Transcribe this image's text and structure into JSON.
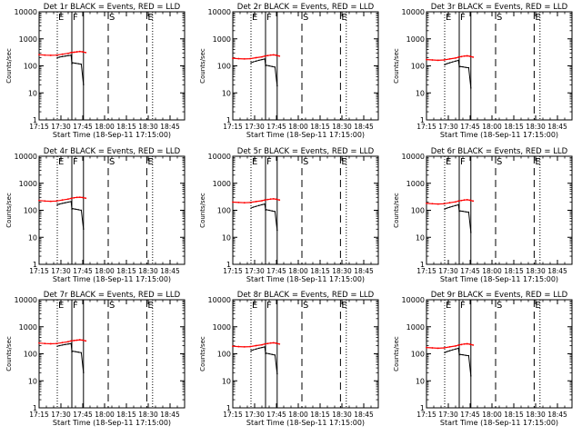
{
  "figure": {
    "start_time_label": "Start Time (18-Sep-11 17:15:00)",
    "ylabel": "Counts/sec",
    "x_tick_labels": [
      "17:15",
      "17:30",
      "17:45",
      "18:00",
      "18:15",
      "18:30",
      "18:45"
    ],
    "x_ticks_minutes": [
      0,
      15,
      30,
      45,
      60,
      75,
      90
    ],
    "xlim_minutes": [
      0,
      100
    ],
    "ylim": [
      1,
      10000
    ],
    "yscale": "log",
    "y_tick_values": [
      1,
      10,
      100,
      1000,
      10000
    ],
    "y_tick_labels": [
      "1",
      "10",
      "100",
      "1000",
      "10000"
    ],
    "series_colors": {
      "events": "#000000",
      "lld": "#ff0000"
    },
    "marker_lines": [
      {
        "letter": "E",
        "minute": 12.5,
        "style": "dotted"
      },
      {
        "letter": "F",
        "minute": 22.5,
        "style": "solid"
      },
      {
        "letter": "",
        "minute": 30.5,
        "style": "solid"
      },
      {
        "letter": "S",
        "minute": 47.5,
        "style": "dashed"
      },
      {
        "letter": "E",
        "minute": 74,
        "style": "dashed"
      },
      {
        "letter": "",
        "minute": 78,
        "style": "dotted"
      }
    ]
  },
  "chart_data": [
    {
      "type": "line",
      "title": "Det 1r BLACK = Events, RED = LLD",
      "xlabel": "Start Time (18-Sep-11 17:15:00)",
      "ylabel": "Counts/sec",
      "ylim": [
        1,
        10000
      ],
      "yscale": "log",
      "events": {
        "x": [
          12.5,
          14,
          16,
          18,
          20,
          22,
          22.5,
          23,
          25,
          27,
          29,
          30.5
        ],
        "y": [
          200,
          210,
          220,
          230,
          240,
          250,
          120,
          130,
          125,
          120,
          115,
          20
        ]
      },
      "lld": {
        "x": [
          0,
          4,
          8,
          12,
          16,
          20,
          22,
          24,
          26,
          28,
          30,
          32
        ],
        "y": [
          260,
          250,
          245,
          250,
          270,
          290,
          310,
          320,
          330,
          340,
          330,
          310
        ]
      }
    },
    {
      "type": "line",
      "title": "Det 2r BLACK = Events, RED = LLD",
      "xlabel": "Start Time (18-Sep-11 17:15:00)",
      "ylabel": "Counts/sec",
      "ylim": [
        1,
        10000
      ],
      "yscale": "log",
      "events": {
        "x": [
          12.5,
          14,
          16,
          18,
          20,
          22,
          22.5,
          23,
          25,
          27,
          29,
          30.5
        ],
        "y": [
          130,
          140,
          150,
          160,
          170,
          180,
          100,
          105,
          100,
          95,
          90,
          18
        ]
      },
      "lld": {
        "x": [
          0,
          4,
          8,
          12,
          16,
          20,
          22,
          24,
          26,
          28,
          30,
          32
        ],
        "y": [
          190,
          185,
          180,
          185,
          200,
          215,
          230,
          240,
          250,
          255,
          245,
          230
        ]
      }
    },
    {
      "type": "line",
      "title": "Det 3r BLACK = Events, RED = LLD",
      "xlabel": "Start Time (18-Sep-11 17:15:00)",
      "ylabel": "Counts/sec",
      "ylim": [
        1,
        10000
      ],
      "yscale": "log",
      "events": {
        "x": [
          12.5,
          14,
          16,
          18,
          20,
          22,
          22.5,
          23,
          25,
          27,
          29,
          30.5
        ],
        "y": [
          110,
          120,
          130,
          140,
          150,
          160,
          90,
          95,
          92,
          88,
          85,
          15
        ]
      },
      "lld": {
        "x": [
          0,
          4,
          8,
          12,
          16,
          20,
          22,
          24,
          26,
          28,
          30,
          32
        ],
        "y": [
          170,
          165,
          160,
          165,
          180,
          195,
          210,
          220,
          230,
          235,
          225,
          210
        ]
      }
    },
    {
      "type": "line",
      "title": "Det 4r BLACK = Events, RED = LLD",
      "xlabel": "Start Time (18-Sep-11 17:15:00)",
      "ylabel": "Counts/sec",
      "ylim": [
        1,
        10000
      ],
      "yscale": "log",
      "events": {
        "x": [
          12.5,
          14,
          16,
          18,
          20,
          22,
          22.5,
          23,
          25,
          27,
          29,
          30.5
        ],
        "y": [
          160,
          170,
          180,
          190,
          200,
          210,
          110,
          115,
          110,
          105,
          100,
          20
        ]
      },
      "lld": {
        "x": [
          0,
          4,
          8,
          12,
          16,
          20,
          22,
          24,
          26,
          28,
          30,
          32
        ],
        "y": [
          230,
          220,
          215,
          220,
          240,
          260,
          275,
          290,
          300,
          305,
          295,
          280
        ]
      }
    },
    {
      "type": "line",
      "title": "Det 5r BLACK = Events, RED = LLD",
      "xlabel": "Start Time (18-Sep-11 17:15:00)",
      "ylabel": "Counts/sec",
      "ylim": [
        1,
        10000
      ],
      "yscale": "log",
      "events": {
        "x": [
          12.5,
          14,
          16,
          18,
          20,
          22,
          22.5,
          23,
          25,
          27,
          29,
          30.5
        ],
        "y": [
          120,
          130,
          140,
          150,
          160,
          170,
          100,
          105,
          100,
          95,
          90,
          18
        ]
      },
      "lld": {
        "x": [
          0,
          4,
          8,
          12,
          16,
          20,
          22,
          24,
          26,
          28,
          30,
          32
        ],
        "y": [
          200,
          195,
          190,
          195,
          210,
          225,
          240,
          250,
          260,
          265,
          255,
          240
        ]
      }
    },
    {
      "type": "line",
      "title": "Det 6r BLACK = Events, RED = LLD",
      "xlabel": "Start Time (18-Sep-11 17:15:00)",
      "ylabel": "Counts/sec",
      "ylim": [
        1,
        10000
      ],
      "yscale": "log",
      "events": {
        "x": [
          12.5,
          14,
          16,
          18,
          20,
          22,
          22.5,
          23,
          25,
          27,
          29,
          30.5
        ],
        "y": [
          110,
          120,
          130,
          140,
          150,
          160,
          90,
          95,
          92,
          88,
          85,
          15
        ]
      },
      "lld": {
        "x": [
          0,
          4,
          8,
          12,
          16,
          20,
          22,
          24,
          26,
          28,
          30,
          32
        ],
        "y": [
          180,
          175,
          170,
          175,
          190,
          205,
          220,
          230,
          240,
          245,
          235,
          220
        ]
      }
    },
    {
      "type": "line",
      "title": "Det 7r BLACK = Events, RED = LLD",
      "xlabel": "Start Time (18-Sep-11 17:15:00)",
      "ylabel": "Counts/sec",
      "ylim": [
        1,
        10000
      ],
      "yscale": "log",
      "events": {
        "x": [
          12.5,
          14,
          16,
          18,
          20,
          22,
          22.5,
          23,
          25,
          27,
          29,
          30.5
        ],
        "y": [
          190,
          200,
          210,
          220,
          230,
          240,
          120,
          125,
          120,
          115,
          110,
          20
        ]
      },
      "lld": {
        "x": [
          0,
          4,
          8,
          12,
          16,
          20,
          22,
          24,
          26,
          28,
          30,
          32
        ],
        "y": [
          250,
          240,
          235,
          240,
          260,
          280,
          300,
          310,
          320,
          330,
          320,
          300
        ]
      }
    },
    {
      "type": "line",
      "title": "Det 8r BLACK = Events, RED = LLD",
      "xlabel": "Start Time (18-Sep-11 17:15:00)",
      "ylabel": "Counts/sec",
      "ylim": [
        1,
        10000
      ],
      "yscale": "log",
      "events": {
        "x": [
          12.5,
          14,
          16,
          18,
          20,
          22,
          22.5,
          23,
          25,
          27,
          29,
          30.5
        ],
        "y": [
          130,
          140,
          150,
          160,
          170,
          180,
          100,
          105,
          100,
          95,
          90,
          18
        ]
      },
      "lld": {
        "x": [
          0,
          4,
          8,
          12,
          16,
          20,
          22,
          24,
          26,
          28,
          30,
          32
        ],
        "y": [
          190,
          185,
          180,
          185,
          200,
          215,
          230,
          240,
          250,
          255,
          245,
          230
        ]
      }
    },
    {
      "type": "line",
      "title": "Det 9r BLACK = Events, RED = LLD",
      "xlabel": "Start Time (18-Sep-11 17:15:00)",
      "ylabel": "Counts/sec",
      "ylim": [
        1,
        10000
      ],
      "yscale": "log",
      "events": {
        "x": [
          12.5,
          14,
          16,
          18,
          20,
          22,
          22.5,
          23,
          25,
          27,
          29,
          30.5
        ],
        "y": [
          110,
          120,
          130,
          140,
          150,
          160,
          90,
          95,
          92,
          88,
          85,
          15
        ]
      },
      "lld": {
        "x": [
          0,
          4,
          8,
          12,
          16,
          20,
          22,
          24,
          26,
          28,
          30,
          32
        ],
        "y": [
          170,
          165,
          160,
          165,
          180,
          195,
          210,
          220,
          230,
          235,
          225,
          210
        ]
      }
    }
  ]
}
